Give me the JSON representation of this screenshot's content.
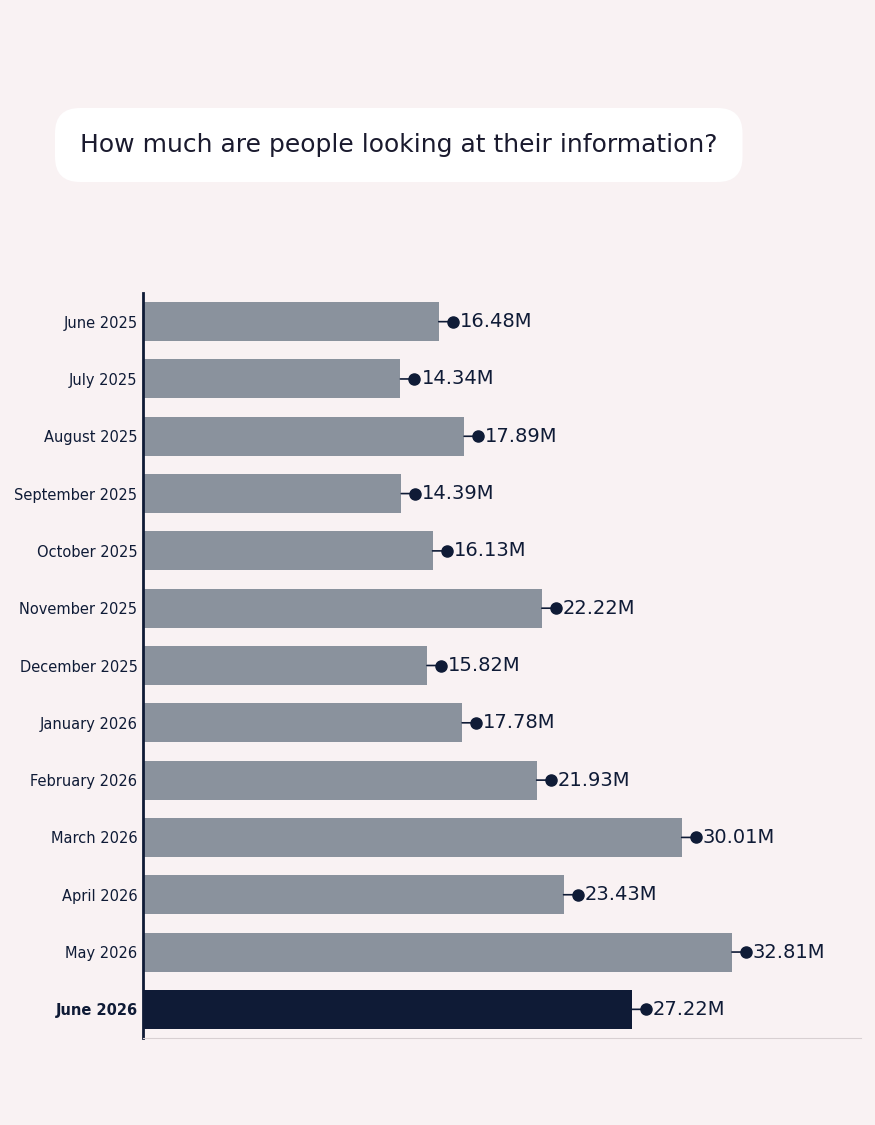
{
  "chart_data": {
    "type": "bar",
    "orientation": "horizontal",
    "title": "How much are people looking at their information?",
    "categories": [
      "June 2025",
      "July 2025",
      "August 2025",
      "September 2025",
      "October 2025",
      "November 2025",
      "December 2025",
      "January 2026",
      "February 2026",
      "March 2026",
      "April 2026",
      "May 2026",
      "June 2026"
    ],
    "values": [
      16.48,
      14.34,
      17.89,
      14.39,
      16.13,
      22.22,
      15.82,
      17.78,
      21.93,
      30.01,
      23.43,
      32.81,
      27.22
    ],
    "value_labels": [
      "16.48M",
      "14.34M",
      "17.89M",
      "14.39M",
      "16.13M",
      "22.22M",
      "15.82M",
      "17.78M",
      "21.93M",
      "30.01M",
      "23.43M",
      "32.81M",
      "27.22M"
    ],
    "colors": [
      "#8a929d",
      "#8a929d",
      "#8a929d",
      "#8a929d",
      "#8a929d",
      "#8a929d",
      "#8a929d",
      "#8a929d",
      "#8a929d",
      "#8a929d",
      "#8a929d",
      "#8a929d",
      "#0f1b36"
    ],
    "xlim": [
      0,
      40
    ],
    "xticks": [],
    "data_labels": true,
    "marker": "o",
    "tick_labels": "y",
    "grid": false
  }
}
